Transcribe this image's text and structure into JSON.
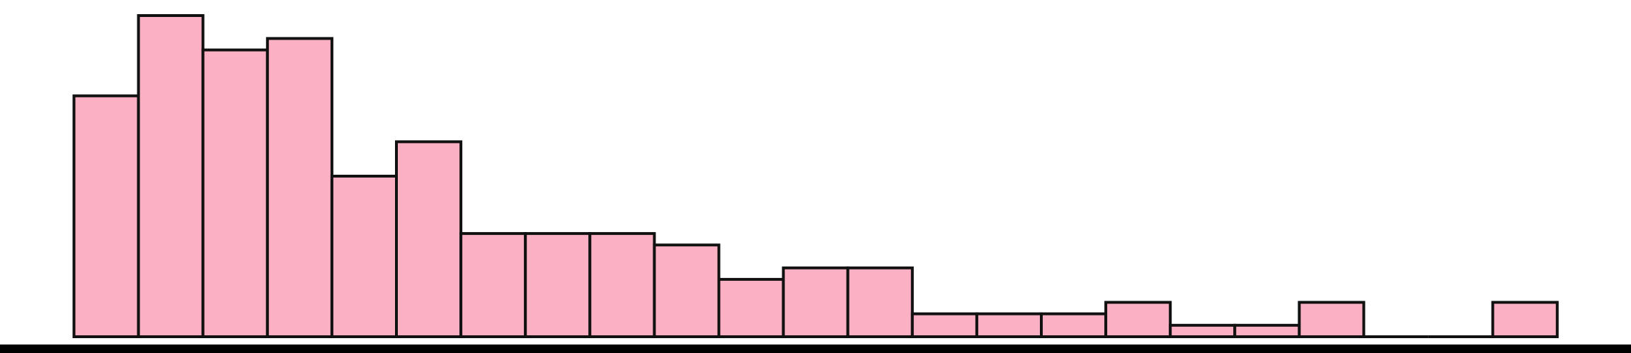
{
  "chart_data": {
    "type": "bar",
    "title": "",
    "xlabel": "",
    "ylabel": "",
    "values": [
      21,
      28,
      25,
      26,
      14,
      17,
      9,
      9,
      9,
      8,
      5,
      6,
      6,
      2,
      2,
      2,
      3,
      1,
      1,
      3,
      0,
      0,
      3
    ],
    "ylim": [
      0,
      28
    ],
    "grid": false,
    "legend": "none",
    "colors": {
      "bar_fill": "#fbb1c3",
      "bar_stroke": "#111111",
      "baseline": "#000000",
      "background": "#ffffff"
    }
  }
}
